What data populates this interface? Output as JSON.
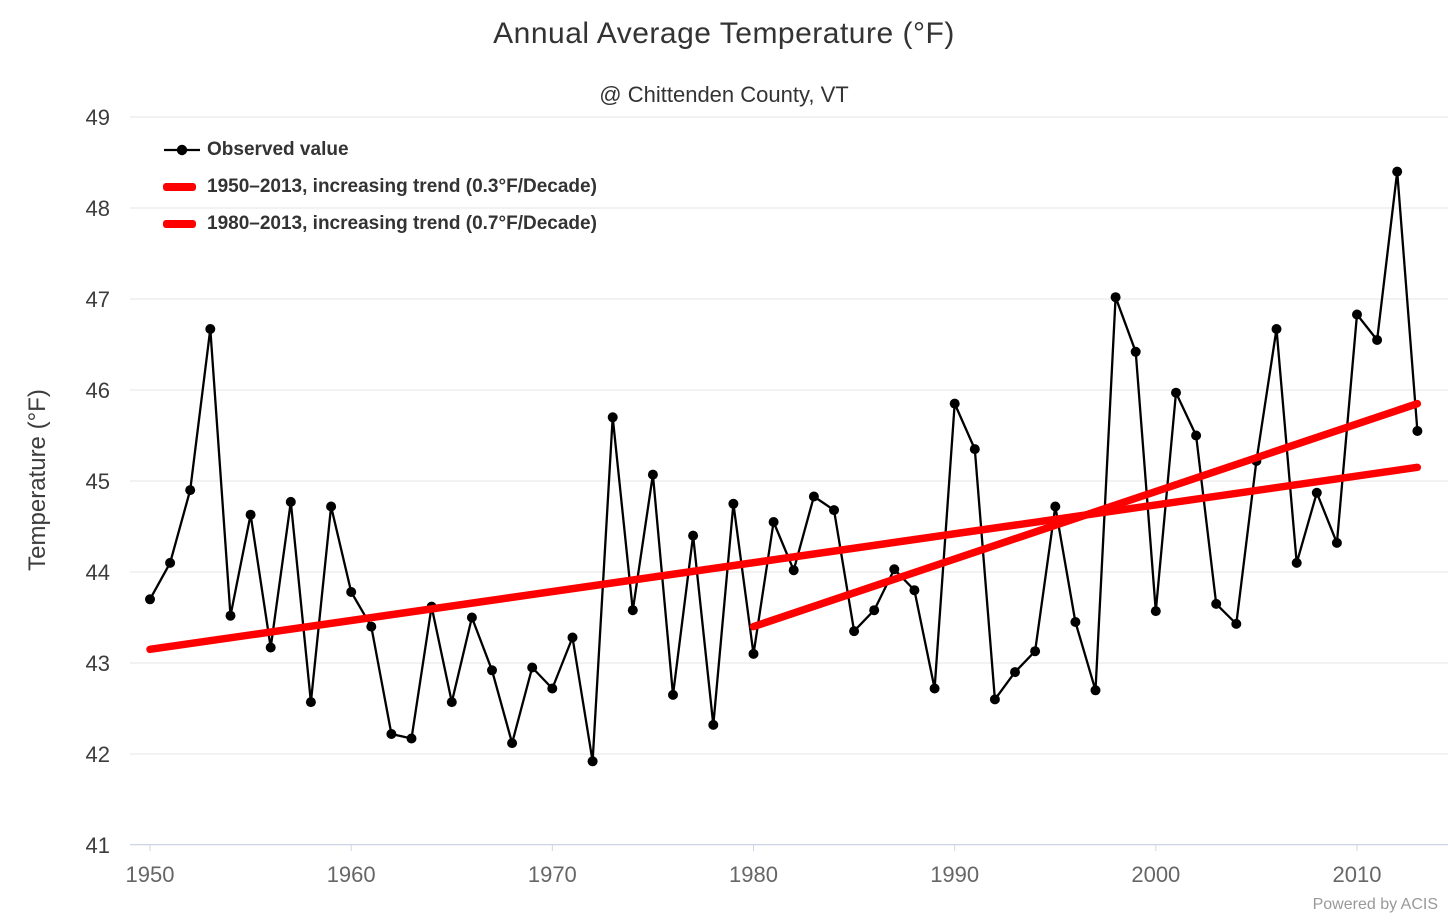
{
  "header": {
    "title": "Annual Average Temperature (°F)",
    "subtitle": "@ Chittenden County, VT"
  },
  "credits": "Powered by ACIS",
  "legend": {
    "items": [
      {
        "label": "Observed value",
        "marker": "line-with-dot-icon",
        "color": "#000000"
      },
      {
        "label": "1950–2013, increasing trend (0.3°F/Decade)",
        "marker": "thick-line-icon",
        "color": "#ff0000"
      },
      {
        "label": "1980–2013, increasing trend (0.7°F/Decade)",
        "marker": "thick-line-icon",
        "color": "#ff0000"
      }
    ]
  },
  "chart_data": {
    "type": "line",
    "title": "Annual Average Temperature (°F)",
    "subtitle": "@ Chittenden County, VT",
    "xlabel": "",
    "ylabel": "Temperature (°F)",
    "ylim": [
      41,
      49
    ],
    "yticks": [
      41,
      42,
      43,
      44,
      45,
      46,
      47,
      48,
      49
    ],
    "xticks": [
      1950,
      1960,
      1970,
      1980,
      1990,
      2000,
      2010
    ],
    "xlim": [
      1949,
      2014.5
    ],
    "grid": true,
    "legend_position": "top-left",
    "x_start_year": 1950,
    "series": [
      {
        "name": "Observed value",
        "kind": "line-markers",
        "color": "#000000",
        "values": [
          43.7,
          44.1,
          44.9,
          46.67,
          43.52,
          44.63,
          43.17,
          44.77,
          42.57,
          44.72,
          43.78,
          43.4,
          42.22,
          42.17,
          43.62,
          42.57,
          43.5,
          42.92,
          42.12,
          42.95,
          42.72,
          43.28,
          41.92,
          45.7,
          43.58,
          45.07,
          42.65,
          44.4,
          42.32,
          44.75,
          43.1,
          44.55,
          44.02,
          44.83,
          44.68,
          43.35,
          43.58,
          44.03,
          43.8,
          42.72,
          45.85,
          45.35,
          42.6,
          42.9,
          43.13,
          44.72,
          43.45,
          42.7,
          47.02,
          46.42,
          43.57,
          45.97,
          45.5,
          43.65,
          43.43,
          45.22,
          46.67,
          44.1,
          44.87,
          44.32,
          46.83,
          46.55,
          48.4,
          45.55
        ]
      },
      {
        "name": "1950–2013, increasing trend (0.3°F/Decade)",
        "kind": "trend",
        "color": "#ff0000",
        "trend": {
          "x": [
            1950,
            2013
          ],
          "y": [
            43.15,
            45.15
          ]
        }
      },
      {
        "name": "1980–2013, increasing trend (0.7°F/Decade)",
        "kind": "trend",
        "color": "#ff0000",
        "trend": {
          "x": [
            1980,
            2013
          ],
          "y": [
            43.4,
            45.85
          ]
        }
      }
    ],
    "colors": {
      "observed": "#000000",
      "trend": "#ff0000",
      "gridline": "#e6e6e6",
      "axis_line": "#ccd6eb",
      "x_tick_label": "#666666",
      "y_tick_label": "#3c3c3c"
    }
  }
}
